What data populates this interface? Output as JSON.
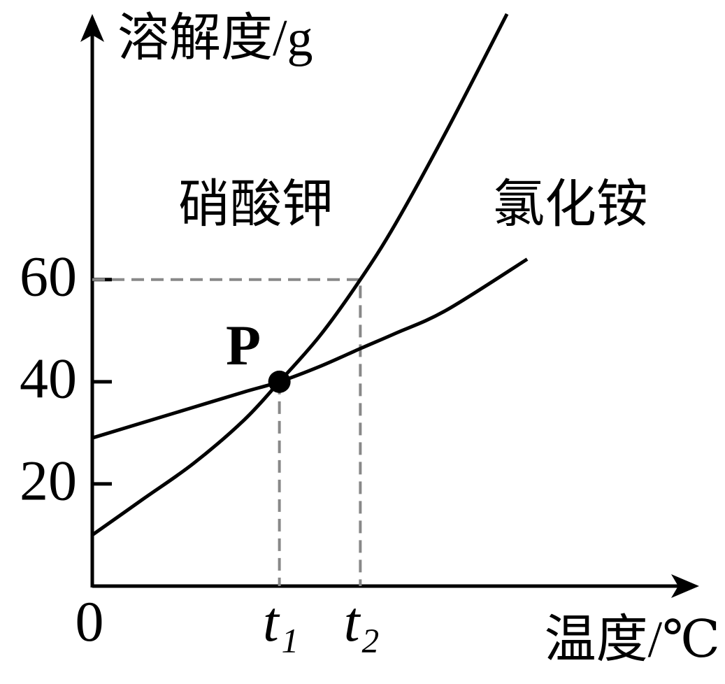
{
  "chart_data": {
    "type": "line",
    "y_label": "溶解度/g",
    "x_label": "温度/℃",
    "xlim": [
      0,
      120
    ],
    "ylim": [
      0,
      112
    ],
    "xticks": [
      0,
      {
        "value": 37,
        "label": "t₁"
      },
      {
        "value": 53,
        "label": "t₂"
      }
    ],
    "yticks": [
      20,
      40,
      60
    ],
    "series": [
      {
        "name": "硝酸钾",
        "color": "#000000",
        "x": [
          0,
          10,
          20,
          30,
          37,
          45,
          53,
          60,
          70,
          82
        ],
        "values": [
          10,
          17,
          24,
          32.5,
          40,
          49,
          60,
          71,
          89,
          112
        ]
      },
      {
        "name": "氯化铵",
        "color": "#000000",
        "x": [
          0,
          10,
          20,
          30,
          37,
          45,
          53,
          60,
          70,
          86
        ],
        "values": [
          29,
          32,
          35,
          38,
          40,
          43,
          46.5,
          49.5,
          54,
          64
        ]
      }
    ],
    "annotation": {
      "text": "P",
      "x": 37,
      "y": 40
    }
  }
}
